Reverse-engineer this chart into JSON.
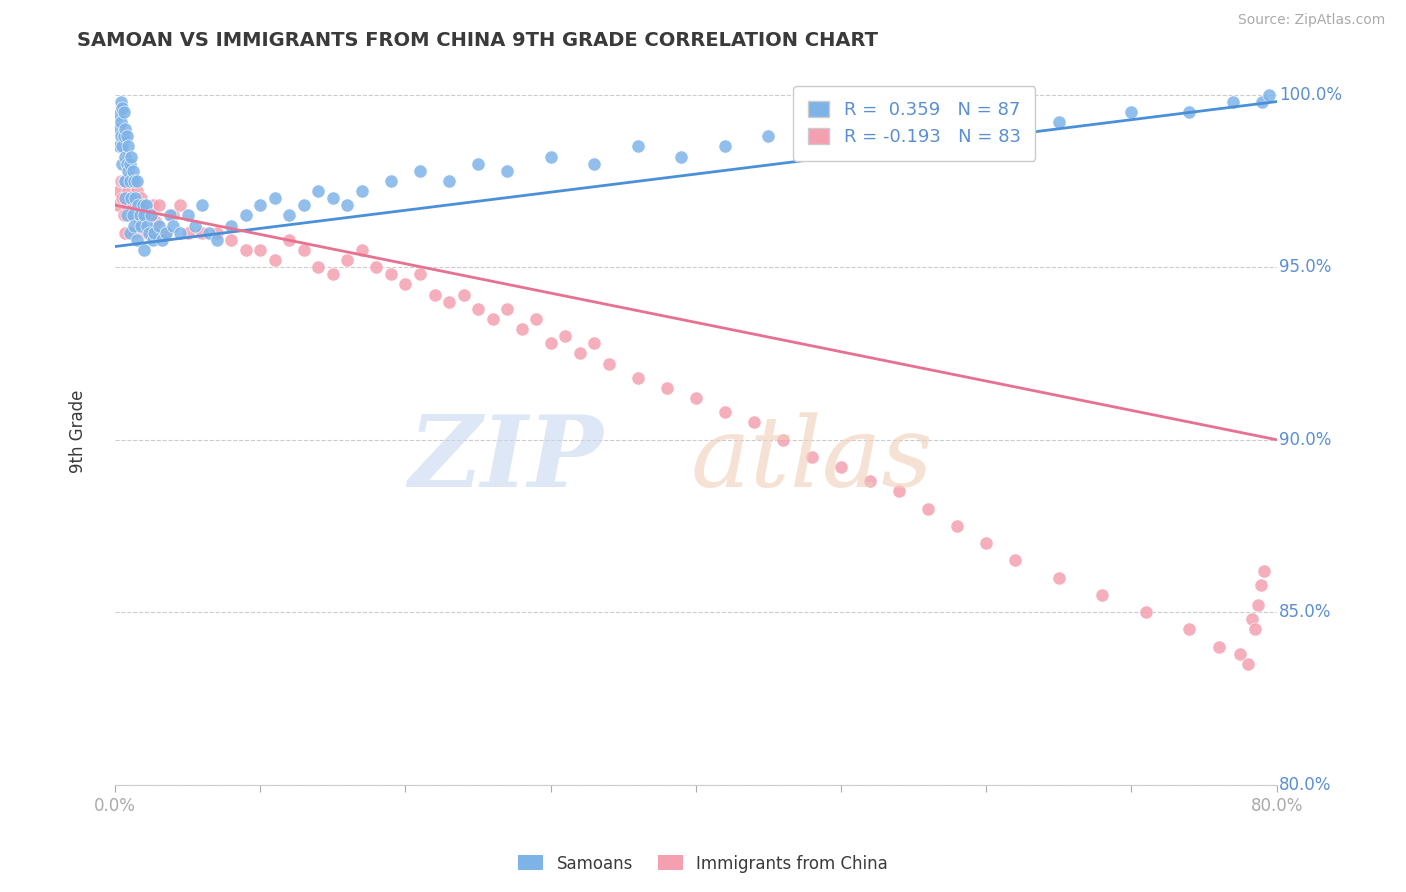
{
  "title": "SAMOAN VS IMMIGRANTS FROM CHINA 9TH GRADE CORRELATION CHART",
  "source": "Source: ZipAtlas.com",
  "ylabel": "9th Grade",
  "xlim": [
    0.0,
    0.8
  ],
  "ylim": [
    0.8,
    1.005
  ],
  "yticks": [
    0.8,
    0.85,
    0.9,
    0.95,
    1.0
  ],
  "xticks": [
    0.0,
    0.1,
    0.2,
    0.3,
    0.4,
    0.5,
    0.6,
    0.7,
    0.8
  ],
  "blue_color": "#7EB3E8",
  "pink_color": "#F4A0B0",
  "blue_line_color": "#4A90D9",
  "pink_line_color": "#E87090",
  "R_blue": 0.359,
  "N_blue": 87,
  "R_pink": -0.193,
  "N_pink": 83,
  "legend_label_blue": "Samoans",
  "legend_label_pink": "Immigrants from China",
  "title_color": "#3a3a3a",
  "axis_color": "#5b8fd4",
  "background_color": "#ffffff",
  "grid_color": "#cccccc",
  "blue_scatter_x": [
    0.002,
    0.003,
    0.003,
    0.004,
    0.004,
    0.004,
    0.005,
    0.005,
    0.005,
    0.006,
    0.006,
    0.006,
    0.007,
    0.007,
    0.007,
    0.007,
    0.008,
    0.008,
    0.008,
    0.009,
    0.009,
    0.01,
    0.01,
    0.01,
    0.011,
    0.011,
    0.012,
    0.012,
    0.013,
    0.013,
    0.014,
    0.015,
    0.015,
    0.016,
    0.017,
    0.018,
    0.019,
    0.02,
    0.02,
    0.021,
    0.022,
    0.023,
    0.025,
    0.026,
    0.027,
    0.03,
    0.032,
    0.035,
    0.038,
    0.04,
    0.045,
    0.05,
    0.055,
    0.06,
    0.065,
    0.07,
    0.08,
    0.09,
    0.1,
    0.11,
    0.12,
    0.13,
    0.14,
    0.15,
    0.16,
    0.17,
    0.19,
    0.21,
    0.23,
    0.25,
    0.27,
    0.3,
    0.33,
    0.36,
    0.39,
    0.42,
    0.45,
    0.48,
    0.52,
    0.56,
    0.6,
    0.65,
    0.7,
    0.74,
    0.77,
    0.79,
    0.795
  ],
  "blue_scatter_y": [
    0.994,
    0.99,
    0.985,
    0.998,
    0.992,
    0.988,
    0.996,
    0.985,
    0.98,
    0.995,
    0.988,
    0.975,
    0.99,
    0.982,
    0.975,
    0.97,
    0.988,
    0.98,
    0.965,
    0.985,
    0.978,
    0.98,
    0.975,
    0.96,
    0.982,
    0.97,
    0.978,
    0.965,
    0.975,
    0.962,
    0.97,
    0.975,
    0.958,
    0.968,
    0.965,
    0.962,
    0.968,
    0.965,
    0.955,
    0.968,
    0.962,
    0.96,
    0.965,
    0.958,
    0.96,
    0.962,
    0.958,
    0.96,
    0.965,
    0.962,
    0.96,
    0.965,
    0.962,
    0.968,
    0.96,
    0.958,
    0.962,
    0.965,
    0.968,
    0.97,
    0.965,
    0.968,
    0.972,
    0.97,
    0.968,
    0.972,
    0.975,
    0.978,
    0.975,
    0.98,
    0.978,
    0.982,
    0.98,
    0.985,
    0.982,
    0.985,
    0.988,
    0.99,
    0.988,
    0.992,
    0.99,
    0.992,
    0.995,
    0.995,
    0.998,
    0.998,
    1.0
  ],
  "pink_scatter_x": [
    0.002,
    0.003,
    0.004,
    0.005,
    0.006,
    0.007,
    0.008,
    0.009,
    0.01,
    0.011,
    0.012,
    0.013,
    0.014,
    0.015,
    0.016,
    0.017,
    0.018,
    0.019,
    0.02,
    0.022,
    0.024,
    0.026,
    0.028,
    0.03,
    0.035,
    0.04,
    0.045,
    0.05,
    0.06,
    0.07,
    0.08,
    0.09,
    0.1,
    0.11,
    0.12,
    0.13,
    0.14,
    0.15,
    0.16,
    0.17,
    0.18,
    0.19,
    0.2,
    0.21,
    0.22,
    0.23,
    0.24,
    0.25,
    0.26,
    0.27,
    0.28,
    0.29,
    0.3,
    0.31,
    0.32,
    0.33,
    0.34,
    0.36,
    0.38,
    0.4,
    0.42,
    0.44,
    0.46,
    0.48,
    0.5,
    0.52,
    0.54,
    0.56,
    0.58,
    0.6,
    0.62,
    0.65,
    0.68,
    0.71,
    0.74,
    0.76,
    0.775,
    0.78,
    0.783,
    0.785,
    0.787,
    0.789,
    0.791
  ],
  "pink_scatter_y": [
    0.968,
    0.972,
    0.975,
    0.97,
    0.965,
    0.96,
    0.968,
    0.972,
    0.975,
    0.965,
    0.968,
    0.96,
    0.965,
    0.972,
    0.966,
    0.963,
    0.97,
    0.965,
    0.968,
    0.96,
    0.965,
    0.968,
    0.963,
    0.968,
    0.96,
    0.965,
    0.968,
    0.96,
    0.96,
    0.96,
    0.958,
    0.955,
    0.955,
    0.952,
    0.958,
    0.955,
    0.95,
    0.948,
    0.952,
    0.955,
    0.95,
    0.948,
    0.945,
    0.948,
    0.942,
    0.94,
    0.942,
    0.938,
    0.935,
    0.938,
    0.932,
    0.935,
    0.928,
    0.93,
    0.925,
    0.928,
    0.922,
    0.918,
    0.915,
    0.912,
    0.908,
    0.905,
    0.9,
    0.895,
    0.892,
    0.888,
    0.885,
    0.88,
    0.875,
    0.87,
    0.865,
    0.86,
    0.855,
    0.85,
    0.845,
    0.84,
    0.838,
    0.835,
    0.848,
    0.845,
    0.852,
    0.858,
    0.862
  ],
  "blue_trendline_x": [
    0.0,
    0.8
  ],
  "blue_trendline_y": [
    0.956,
    0.998
  ],
  "pink_trendline_x": [
    0.0,
    0.8
  ],
  "pink_trendline_y": [
    0.968,
    0.9
  ]
}
